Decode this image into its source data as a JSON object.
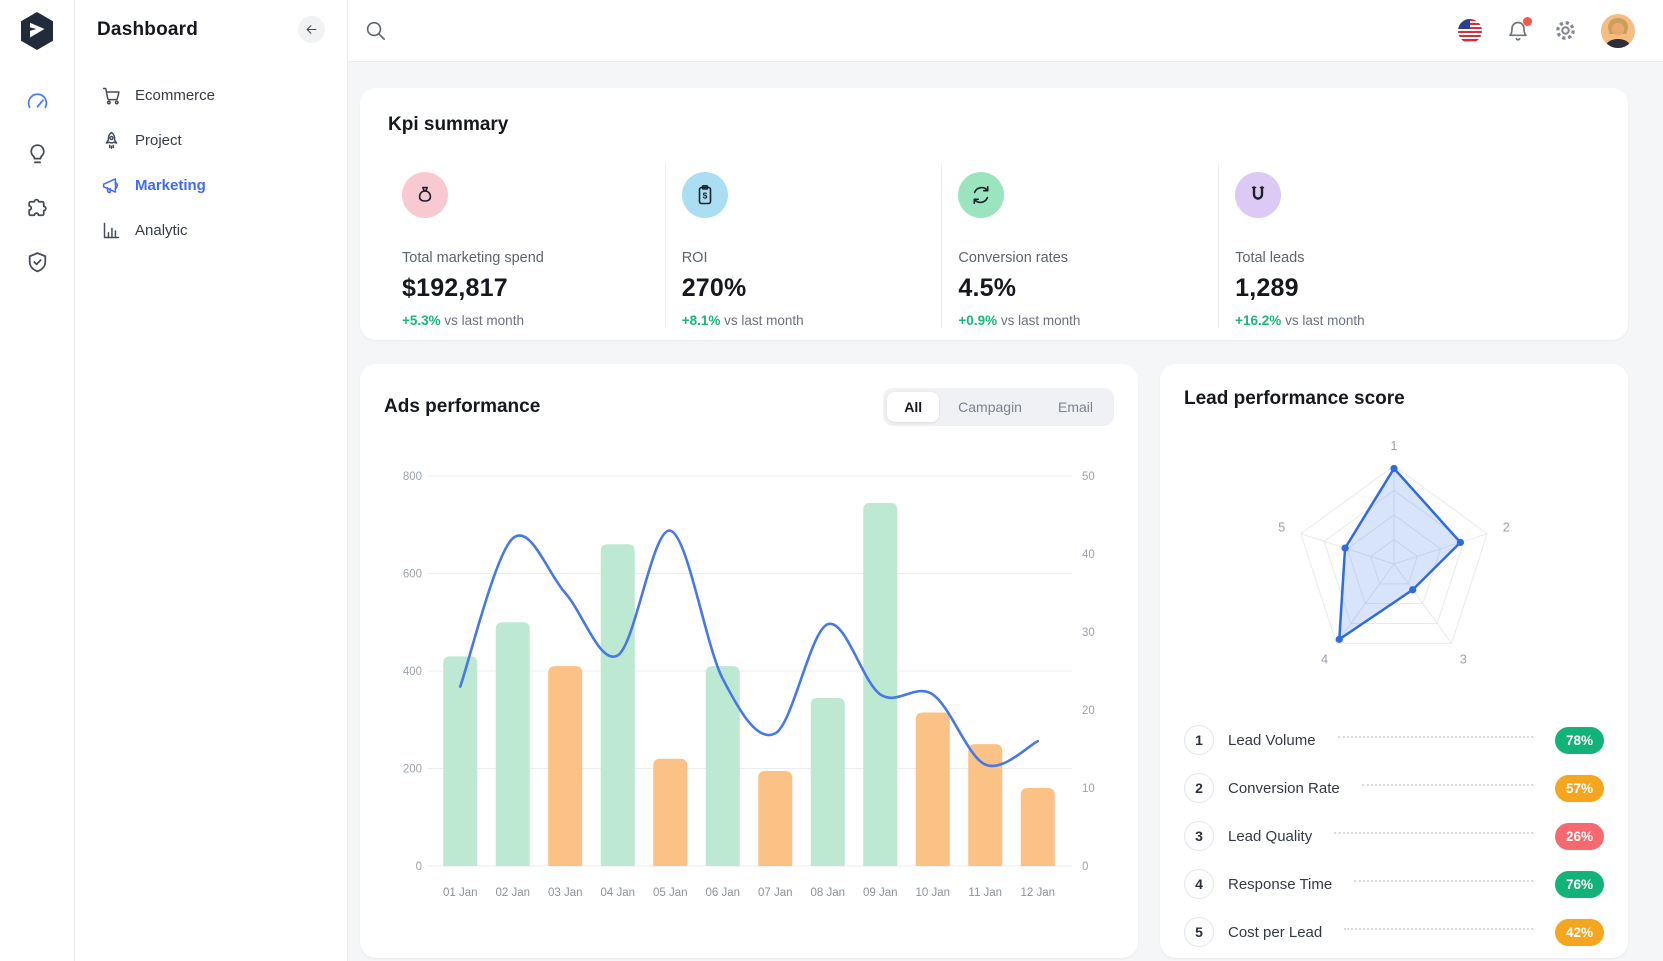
{
  "sidebar": {
    "title": "Dashboard",
    "collapse_icon": "arrow-left-icon",
    "rail_icons": [
      "dashboard-gauge-icon",
      "lightbulb-icon",
      "puzzle-icon",
      "shield-check-icon"
    ],
    "items": [
      {
        "label": "Ecommerce",
        "icon": "cart-icon",
        "active": false
      },
      {
        "label": "Project",
        "icon": "rocket-icon",
        "active": false
      },
      {
        "label": "Marketing",
        "icon": "megaphone-icon",
        "active": true
      },
      {
        "label": "Analytic",
        "icon": "bar-chart-icon",
        "active": false
      }
    ]
  },
  "topbar": {
    "icons": [
      "search-icon",
      "us-flag-icon",
      "bell-icon",
      "gear-icon",
      "avatar"
    ],
    "notification_dot": true
  },
  "kpi": {
    "title": "Kpi summary",
    "cards": [
      {
        "label": "Total marketing spend",
        "value": "$192,817",
        "delta": "+5.3%",
        "suffix": "vs last month",
        "icon": "money-bag-icon",
        "icon_bg": "#f9c9d2"
      },
      {
        "label": "ROI",
        "value": "270%",
        "delta": "+8.1%",
        "suffix": "vs last month",
        "icon": "clipboard-dollar-icon",
        "icon_bg": "#a9def3"
      },
      {
        "label": "Conversion rates",
        "value": "4.5%",
        "delta": "+0.9%",
        "suffix": "vs last month",
        "icon": "sync-arrows-icon",
        "icon_bg": "#9be4c0"
      },
      {
        "label": "Total leads",
        "value": "1,289",
        "delta": "+16.2%",
        "suffix": "vs last month",
        "icon": "magnet-icon",
        "icon_bg": "#dcc9f6"
      }
    ]
  },
  "ads": {
    "title": "Ads performance",
    "tabs": [
      {
        "label": "All",
        "active": true
      },
      {
        "label": "Campagin",
        "active": false
      },
      {
        "label": "Email",
        "active": false
      }
    ]
  },
  "lead": {
    "title": "Lead performance score",
    "rows": [
      {
        "num": "1",
        "label": "Lead Volume",
        "value": "78%",
        "color": "#12b378"
      },
      {
        "num": "2",
        "label": "Conversion Rate",
        "value": "57%",
        "color": "#f6a51f"
      },
      {
        "num": "3",
        "label": "Lead Quality",
        "value": "26%",
        "color": "#f7696f"
      },
      {
        "num": "4",
        "label": "Response Time",
        "value": "76%",
        "color": "#12b378"
      },
      {
        "num": "5",
        "label": "Cost per Lead",
        "value": "42%",
        "color": "#f6a51f"
      }
    ]
  },
  "chart_data": [
    {
      "type": "bar",
      "title": "Ads performance",
      "categories": [
        "01 Jan",
        "02 Jan",
        "03 Jan",
        "04 Jan",
        "05 Jan",
        "06 Jan",
        "07 Jan",
        "08 Jan",
        "09 Jan",
        "10 Jan",
        "11 Jan",
        "12 Jan"
      ],
      "series": [
        {
          "name": "ads-volume-bars",
          "type": "bar",
          "axis": "left",
          "values": [
            430,
            500,
            410,
            660,
            220,
            410,
            195,
            345,
            745,
            315,
            250,
            160
          ],
          "colors": [
            "green",
            "green",
            "orange",
            "green",
            "orange",
            "green",
            "orange",
            "green",
            "green",
            "orange",
            "orange",
            "orange"
          ]
        },
        {
          "name": "performance-line",
          "type": "line",
          "axis": "right",
          "values": [
            23,
            42,
            35,
            27,
            43,
            24,
            17,
            31,
            22,
            22,
            13,
            16
          ]
        }
      ],
      "left_axis": {
        "ticks": [
          0,
          200,
          400,
          600,
          800
        ],
        "range": [
          0,
          800
        ]
      },
      "right_axis": {
        "ticks": [
          0,
          10,
          20,
          30,
          40,
          50
        ],
        "range": [
          0,
          50
        ]
      },
      "grid": true,
      "legend_position": "none",
      "bar_color_green": "#bde8d1",
      "bar_color_orange": "#fbc185",
      "line_color": "#4678e8"
    },
    {
      "type": "radar",
      "title": "Lead performance score",
      "axes": [
        "1",
        "2",
        "3",
        "4",
        "5"
      ],
      "values": [
        78,
        57,
        26,
        76,
        42
      ],
      "max": 80,
      "rings": 4,
      "fill_color": "#4e82e8",
      "fill_opacity": 0.22,
      "stroke_color": "#2f6be0",
      "web_color": "#e8eaee",
      "label_color": "#9aa1ab"
    }
  ],
  "theme": {
    "accent_blue": "#3f6af5",
    "delta_green": "#16b878",
    "card_bg": "#ffffff",
    "page_bg": "#f5f6f8"
  }
}
